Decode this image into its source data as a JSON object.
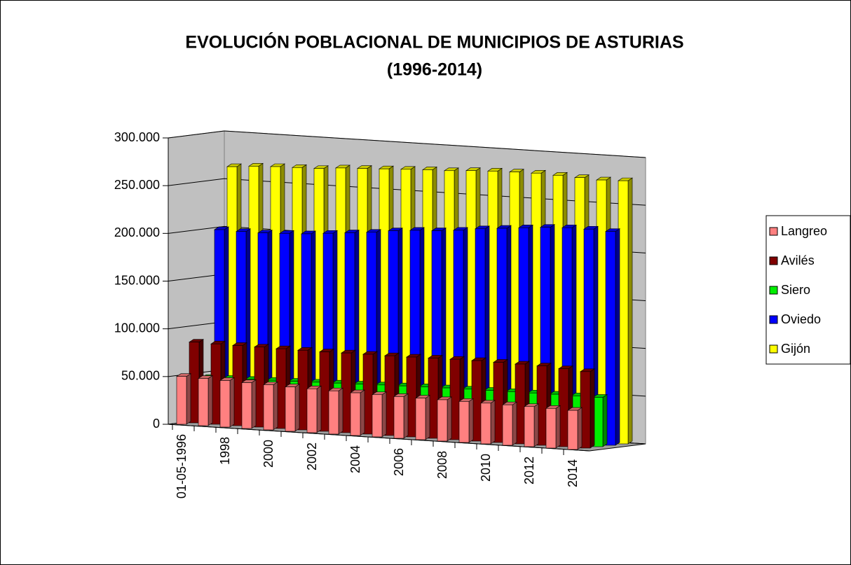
{
  "chart_data": {
    "type": "bar3d",
    "title": [
      "EVOLUCIÓN POBLACIONAL DE MUNICIPIOS DE ASTURIAS",
      "(1996-2014)"
    ],
    "categories": [
      "01-05-1996",
      null,
      "1998",
      null,
      "2000",
      null,
      "2002",
      null,
      "2004",
      null,
      "2006",
      null,
      "2008",
      null,
      "2010",
      null,
      "2012",
      null,
      "2014"
    ],
    "series": [
      {
        "name": "Langreo",
        "color": "#ff8080",
        "values": [
          50100,
          49500,
          48800,
          48000,
          47300,
          46500,
          46000,
          45300,
          44700,
          44200,
          43700,
          43500,
          43300,
          43000,
          42700,
          42400,
          42000,
          41600,
          41000
        ]
      },
      {
        "name": "Avilés",
        "color": "#800000",
        "values": [
          84600,
          84200,
          84000,
          83900,
          83500,
          83400,
          83200,
          83500,
          83600,
          83500,
          83600,
          84000,
          84200,
          84300,
          84000,
          83600,
          83100,
          81700,
          80100
        ]
      },
      {
        "name": "Siero",
        "color": "#00ee00",
        "values": [
          46000,
          46500,
          47000,
          47500,
          48000,
          48500,
          49000,
          49500,
          50000,
          50500,
          51000,
          51300,
          51500,
          51700,
          51800,
          51900,
          52000,
          51800,
          51700
        ]
      },
      {
        "name": "Oviedo",
        "color": "#0000ff",
        "values": [
          199500,
          199000,
          199000,
          200000,
          201000,
          203000,
          205000,
          207000,
          210000,
          212000,
          213000,
          215000,
          218000,
          220000,
          222000,
          224000,
          225000,
          225000,
          224000
        ]
      },
      {
        "name": "Gijón",
        "color": "#ffff00",
        "values": [
          264000,
          266000,
          267000,
          267500,
          268000,
          270000,
          271000,
          272000,
          273000,
          274000,
          274500,
          276000,
          277000,
          277500,
          277800,
          277000,
          276000,
          275000,
          275700
        ]
      }
    ],
    "ylim": [
      0,
      300000
    ],
    "yticks": [
      0,
      {
        "value": 50000,
        "label": "50.000"
      },
      {
        "value": 100000,
        "label": "100.000"
      },
      {
        "value": 150000,
        "label": "150.000"
      },
      {
        "value": 200000,
        "label": "200.000"
      },
      {
        "value": 250000,
        "label": "250.000"
      },
      {
        "value": 300000,
        "label": "300.000"
      }
    ],
    "grid": true,
    "legend": "right"
  }
}
